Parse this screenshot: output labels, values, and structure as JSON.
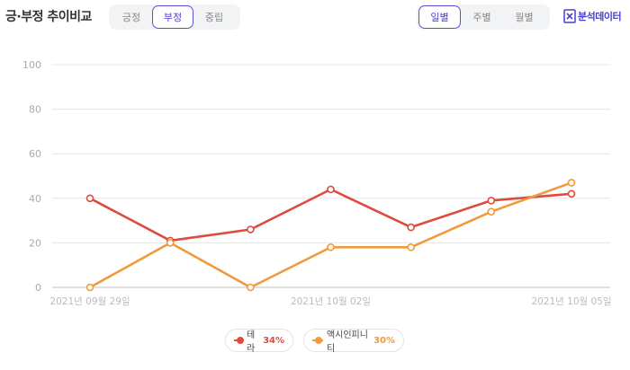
{
  "header": {
    "title": "긍·부정 추이비교",
    "sentiment_tabs": [
      {
        "label": "긍정",
        "active": false
      },
      {
        "label": "부정",
        "active": true
      },
      {
        "label": "중립",
        "active": false
      }
    ],
    "period_tabs": [
      {
        "label": "일별",
        "active": true
      },
      {
        "label": "주별",
        "active": false
      },
      {
        "label": "월별",
        "active": false
      }
    ],
    "analysis_label": "분석데이터",
    "analysis_icon": "excel-icon",
    "accent_color": "#4a3fc8"
  },
  "chart_data": {
    "type": "line",
    "x_tick_labels": [
      "2021년 09월 29일",
      "2021년 10월 02일",
      "2021년 10월 05일"
    ],
    "x_points": 7,
    "ylim": [
      0,
      100
    ],
    "y_ticks": [
      0,
      20,
      40,
      60,
      80,
      100
    ],
    "grid": true,
    "legend_position": "bottom-center",
    "series": [
      {
        "name": "테라",
        "percent": "34%",
        "color": "#dd4b3e",
        "values": [
          40,
          21,
          26,
          44,
          27,
          39,
          42
        ]
      },
      {
        "name": "액시인피니티",
        "percent": "30%",
        "color": "#ef9a3c",
        "values": [
          0,
          20,
          0,
          18,
          18,
          34,
          47
        ]
      }
    ]
  }
}
